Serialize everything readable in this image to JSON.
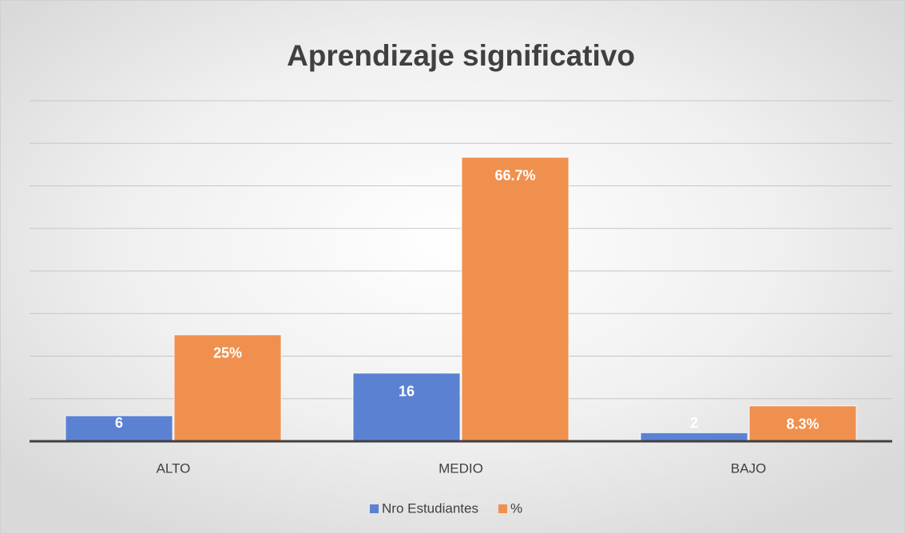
{
  "chart_data": {
    "type": "bar",
    "title": "Aprendizaje significativo",
    "categories": [
      "ALTO",
      "MEDIO",
      "BAJO"
    ],
    "series": [
      {
        "name": "Nro Estudiantes",
        "color": "#5b82d2",
        "values": [
          6,
          16,
          2
        ]
      },
      {
        "name": "%",
        "color": "#f0904f",
        "values": [
          25,
          66.7,
          8.3
        ],
        "value_labels": [
          "25%",
          "66.7%",
          "8.3%"
        ]
      }
    ],
    "ylim": [
      0,
      80
    ],
    "yticks": [
      0,
      10,
      20,
      30,
      40,
      50,
      60,
      70,
      80
    ],
    "grid": true,
    "legend": "bottom"
  }
}
